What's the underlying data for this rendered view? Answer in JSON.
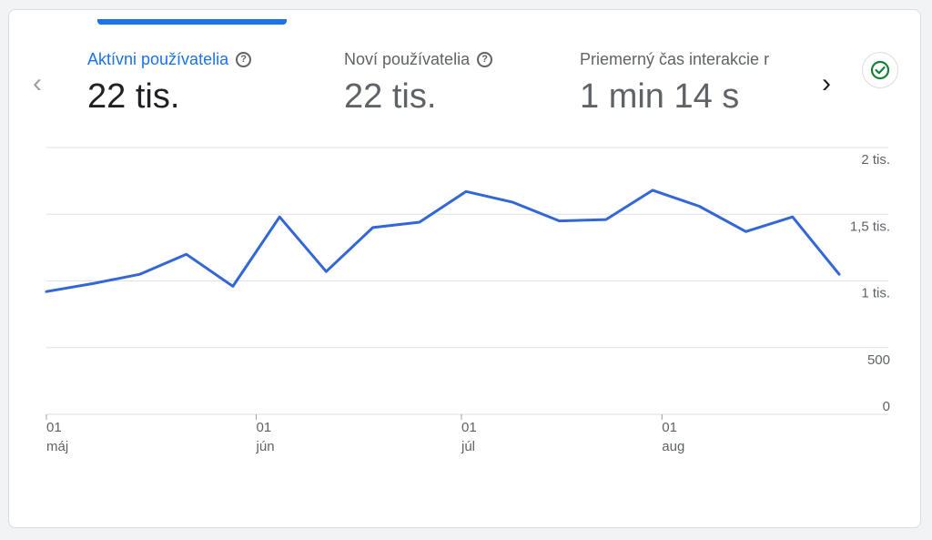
{
  "metrics": [
    {
      "label": "Aktívni používatelia",
      "value": "22 tis.",
      "has_help": true
    },
    {
      "label": "Noví používatelia",
      "value": "22 tis.",
      "has_help": true
    },
    {
      "label": "Priemerný čas interakcie r",
      "value": "1 min 14 s",
      "has_help": false
    }
  ],
  "help_glyph": "?",
  "nav": {
    "prev": "‹",
    "next": "›"
  },
  "colors": {
    "accent": "#1a73e8",
    "line": "#3367d6",
    "grid": "#e0e0e0",
    "check": "#188038"
  },
  "chart_data": {
    "type": "line",
    "title": "",
    "series": [
      {
        "values": [
          920,
          980,
          1050,
          1200,
          960,
          1480,
          1070,
          1400,
          1440,
          1670,
          1590,
          1450,
          1460,
          1680,
          1560,
          1370,
          1480,
          1050
        ]
      }
    ],
    "ylim": [
      0,
      2000
    ],
    "y_ticks": [
      {
        "value": 2000,
        "label": "2 tis."
      },
      {
        "value": 1500,
        "label": "1,5 tis."
      },
      {
        "value": 1000,
        "label": "1 tis."
      },
      {
        "value": 500,
        "label": "500"
      },
      {
        "value": 0,
        "label": "0"
      }
    ],
    "x_ticks": [
      {
        "index": 0,
        "day": "01",
        "month": "máj"
      },
      {
        "index": 4.5,
        "day": "01",
        "month": "jún"
      },
      {
        "index": 8.9,
        "day": "01",
        "month": "júl"
      },
      {
        "index": 13.2,
        "day": "01",
        "month": "aug"
      }
    ],
    "grid": true
  }
}
